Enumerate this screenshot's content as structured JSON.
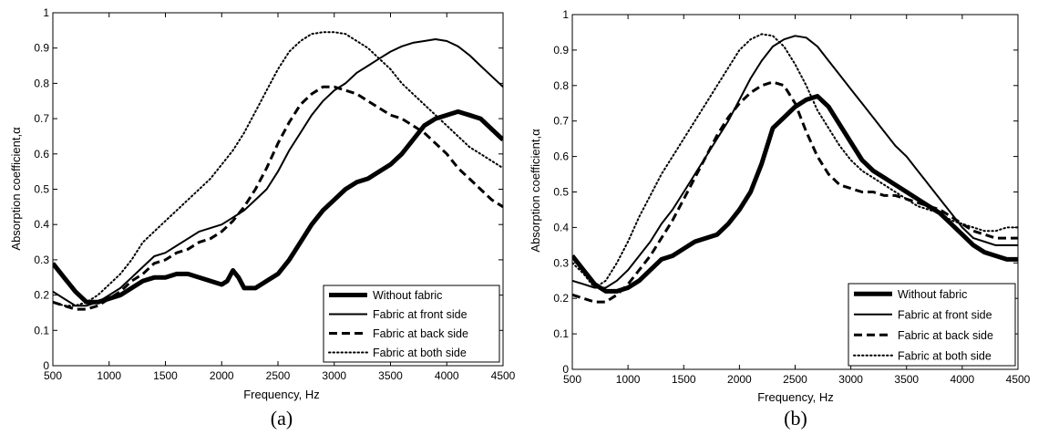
{
  "chart_data": [
    {
      "type": "line",
      "panel_label": "(a)",
      "xlabel": "Frequency, Hz",
      "ylabel": "Absorption coefficient,α",
      "xlim": [
        500,
        4500
      ],
      "ylim": [
        0,
        1
      ],
      "xticks": [
        500,
        1000,
        1500,
        2000,
        2500,
        3000,
        3500,
        4000,
        4500
      ],
      "yticks": [
        0,
        0.1,
        0.2,
        0.3,
        0.4,
        0.5,
        0.6,
        0.7,
        0.8,
        0.9,
        1
      ],
      "grid": false,
      "legend_position": "bottom-right",
      "series": [
        {
          "name": "Without fabric",
          "style": "thick-solid",
          "x": [
            500,
            600,
            700,
            800,
            900,
            1000,
            1100,
            1200,
            1300,
            1400,
            1500,
            1600,
            1700,
            1800,
            1900,
            2000,
            2050,
            2100,
            2150,
            2200,
            2300,
            2400,
            2500,
            2600,
            2700,
            2800,
            2900,
            3000,
            3100,
            3200,
            3300,
            3400,
            3500,
            3600,
            3700,
            3800,
            3900,
            4000,
            4100,
            4200,
            4300,
            4400,
            4500
          ],
          "y": [
            0.29,
            0.25,
            0.21,
            0.18,
            0.18,
            0.19,
            0.2,
            0.22,
            0.24,
            0.25,
            0.25,
            0.26,
            0.26,
            0.25,
            0.24,
            0.23,
            0.24,
            0.27,
            0.25,
            0.22,
            0.22,
            0.24,
            0.26,
            0.3,
            0.35,
            0.4,
            0.44,
            0.47,
            0.5,
            0.52,
            0.53,
            0.55,
            0.57,
            0.6,
            0.64,
            0.68,
            0.7,
            0.71,
            0.72,
            0.71,
            0.7,
            0.67,
            0.64
          ]
        },
        {
          "name": "Fabric at front side",
          "style": "solid",
          "x": [
            500,
            600,
            700,
            800,
            900,
            1000,
            1100,
            1200,
            1300,
            1400,
            1500,
            1600,
            1700,
            1800,
            1900,
            2000,
            2100,
            2200,
            2300,
            2400,
            2500,
            2600,
            2700,
            2800,
            2900,
            3000,
            3100,
            3200,
            3300,
            3400,
            3500,
            3600,
            3700,
            3800,
            3900,
            4000,
            4100,
            4200,
            4300,
            4400,
            4500
          ],
          "y": [
            0.21,
            0.19,
            0.17,
            0.17,
            0.18,
            0.2,
            0.22,
            0.25,
            0.28,
            0.31,
            0.32,
            0.34,
            0.36,
            0.38,
            0.39,
            0.4,
            0.42,
            0.44,
            0.47,
            0.5,
            0.55,
            0.61,
            0.66,
            0.71,
            0.75,
            0.78,
            0.8,
            0.83,
            0.85,
            0.87,
            0.89,
            0.905,
            0.915,
            0.92,
            0.925,
            0.92,
            0.905,
            0.88,
            0.85,
            0.82,
            0.79
          ]
        },
        {
          "name": "Fabric at back side",
          "style": "dashed",
          "x": [
            500,
            600,
            700,
            800,
            900,
            1000,
            1100,
            1200,
            1300,
            1400,
            1500,
            1600,
            1700,
            1800,
            1900,
            2000,
            2100,
            2200,
            2300,
            2400,
            2500,
            2600,
            2700,
            2800,
            2900,
            3000,
            3100,
            3200,
            3300,
            3400,
            3500,
            3600,
            3700,
            3800,
            3900,
            4000,
            4100,
            4200,
            4300,
            4400,
            4500
          ],
          "y": [
            0.18,
            0.17,
            0.16,
            0.16,
            0.17,
            0.19,
            0.21,
            0.24,
            0.26,
            0.29,
            0.3,
            0.32,
            0.33,
            0.35,
            0.36,
            0.38,
            0.41,
            0.45,
            0.5,
            0.56,
            0.63,
            0.69,
            0.74,
            0.77,
            0.79,
            0.79,
            0.78,
            0.77,
            0.75,
            0.73,
            0.71,
            0.7,
            0.68,
            0.66,
            0.63,
            0.6,
            0.56,
            0.53,
            0.5,
            0.47,
            0.45
          ]
        },
        {
          "name": "Fabric at both side",
          "style": "dotted",
          "x": [
            500,
            600,
            700,
            800,
            900,
            1000,
            1100,
            1200,
            1300,
            1400,
            1500,
            1600,
            1700,
            1800,
            1900,
            2000,
            2100,
            2200,
            2300,
            2400,
            2500,
            2600,
            2700,
            2800,
            2900,
            3000,
            3100,
            3200,
            3300,
            3400,
            3500,
            3600,
            3700,
            3800,
            3900,
            4000,
            4100,
            4200,
            4300,
            4400,
            4500
          ],
          "y": [
            0.18,
            0.17,
            0.17,
            0.18,
            0.2,
            0.23,
            0.26,
            0.3,
            0.35,
            0.38,
            0.41,
            0.44,
            0.47,
            0.5,
            0.53,
            0.57,
            0.61,
            0.66,
            0.72,
            0.78,
            0.84,
            0.89,
            0.92,
            0.94,
            0.945,
            0.945,
            0.94,
            0.92,
            0.9,
            0.87,
            0.84,
            0.8,
            0.77,
            0.74,
            0.71,
            0.68,
            0.65,
            0.62,
            0.6,
            0.58,
            0.56
          ]
        }
      ]
    },
    {
      "type": "line",
      "panel_label": "(b)",
      "xlabel": "Frequency, Hz",
      "ylabel": "Absorption coefficient,α",
      "xlim": [
        500,
        4500
      ],
      "ylim": [
        0,
        1
      ],
      "xticks": [
        500,
        1000,
        1500,
        2000,
        2500,
        3000,
        3500,
        4000,
        4500
      ],
      "yticks": [
        0,
        0.1,
        0.2,
        0.3,
        0.4,
        0.5,
        0.6,
        0.7,
        0.8,
        0.9,
        1
      ],
      "grid": false,
      "legend_position": "bottom-right",
      "series": [
        {
          "name": "Without fabric",
          "style": "thick-solid",
          "x": [
            500,
            600,
            700,
            800,
            900,
            1000,
            1100,
            1200,
            1300,
            1400,
            1500,
            1600,
            1700,
            1800,
            1900,
            2000,
            2100,
            2200,
            2300,
            2400,
            2500,
            2600,
            2700,
            2800,
            2900,
            3000,
            3100,
            3200,
            3300,
            3400,
            3500,
            3600,
            3700,
            3800,
            3900,
            4000,
            4100,
            4200,
            4300,
            4400,
            4500
          ],
          "y": [
            0.32,
            0.28,
            0.24,
            0.22,
            0.22,
            0.23,
            0.25,
            0.28,
            0.31,
            0.32,
            0.34,
            0.36,
            0.37,
            0.38,
            0.41,
            0.45,
            0.5,
            0.58,
            0.68,
            0.71,
            0.74,
            0.76,
            0.77,
            0.74,
            0.69,
            0.64,
            0.59,
            0.56,
            0.54,
            0.52,
            0.5,
            0.48,
            0.46,
            0.44,
            0.41,
            0.38,
            0.35,
            0.33,
            0.32,
            0.31,
            0.31
          ]
        },
        {
          "name": "Fabric at front side",
          "style": "solid",
          "x": [
            500,
            600,
            700,
            800,
            900,
            1000,
            1100,
            1200,
            1300,
            1400,
            1500,
            1600,
            1700,
            1800,
            1900,
            2000,
            2100,
            2200,
            2300,
            2400,
            2500,
            2600,
            2700,
            2800,
            2900,
            3000,
            3100,
            3200,
            3300,
            3400,
            3500,
            3600,
            3700,
            3800,
            3900,
            4000,
            4100,
            4200,
            4300,
            4400,
            4500
          ],
          "y": [
            0.25,
            0.24,
            0.23,
            0.23,
            0.25,
            0.28,
            0.32,
            0.36,
            0.41,
            0.45,
            0.5,
            0.55,
            0.6,
            0.65,
            0.7,
            0.76,
            0.82,
            0.87,
            0.91,
            0.93,
            0.94,
            0.935,
            0.91,
            0.87,
            0.83,
            0.79,
            0.75,
            0.71,
            0.67,
            0.63,
            0.6,
            0.56,
            0.52,
            0.48,
            0.44,
            0.4,
            0.37,
            0.36,
            0.35,
            0.35,
            0.35
          ]
        },
        {
          "name": "Fabric at back side",
          "style": "dashed",
          "x": [
            500,
            600,
            700,
            800,
            900,
            1000,
            1100,
            1200,
            1300,
            1400,
            1500,
            1600,
            1700,
            1800,
            1900,
            2000,
            2100,
            2200,
            2300,
            2400,
            2500,
            2600,
            2700,
            2800,
            2900,
            3000,
            3100,
            3200,
            3300,
            3400,
            3500,
            3600,
            3700,
            3800,
            3900,
            4000,
            4100,
            4200,
            4300,
            4400,
            4500
          ],
          "y": [
            0.21,
            0.2,
            0.19,
            0.19,
            0.21,
            0.24,
            0.28,
            0.32,
            0.37,
            0.42,
            0.48,
            0.54,
            0.6,
            0.66,
            0.71,
            0.75,
            0.78,
            0.8,
            0.81,
            0.8,
            0.75,
            0.67,
            0.6,
            0.55,
            0.52,
            0.51,
            0.5,
            0.5,
            0.49,
            0.49,
            0.48,
            0.47,
            0.46,
            0.45,
            0.43,
            0.41,
            0.39,
            0.38,
            0.37,
            0.37,
            0.37
          ]
        },
        {
          "name": "Fabric at both side",
          "style": "dotted",
          "x": [
            500,
            600,
            700,
            800,
            900,
            1000,
            1100,
            1200,
            1300,
            1400,
            1500,
            1600,
            1700,
            1800,
            1900,
            2000,
            2100,
            2200,
            2300,
            2400,
            2500,
            2600,
            2700,
            2800,
            2900,
            3000,
            3100,
            3200,
            3300,
            3400,
            3500,
            3600,
            3700,
            3800,
            3900,
            4000,
            4100,
            4200,
            4300,
            4400,
            4500
          ],
          "y": [
            0.3,
            0.27,
            0.23,
            0.25,
            0.3,
            0.36,
            0.43,
            0.49,
            0.55,
            0.6,
            0.65,
            0.7,
            0.75,
            0.8,
            0.85,
            0.9,
            0.93,
            0.945,
            0.94,
            0.91,
            0.86,
            0.8,
            0.73,
            0.68,
            0.63,
            0.59,
            0.56,
            0.54,
            0.52,
            0.5,
            0.48,
            0.46,
            0.45,
            0.44,
            0.42,
            0.41,
            0.4,
            0.39,
            0.39,
            0.4,
            0.4
          ]
        }
      ]
    }
  ]
}
